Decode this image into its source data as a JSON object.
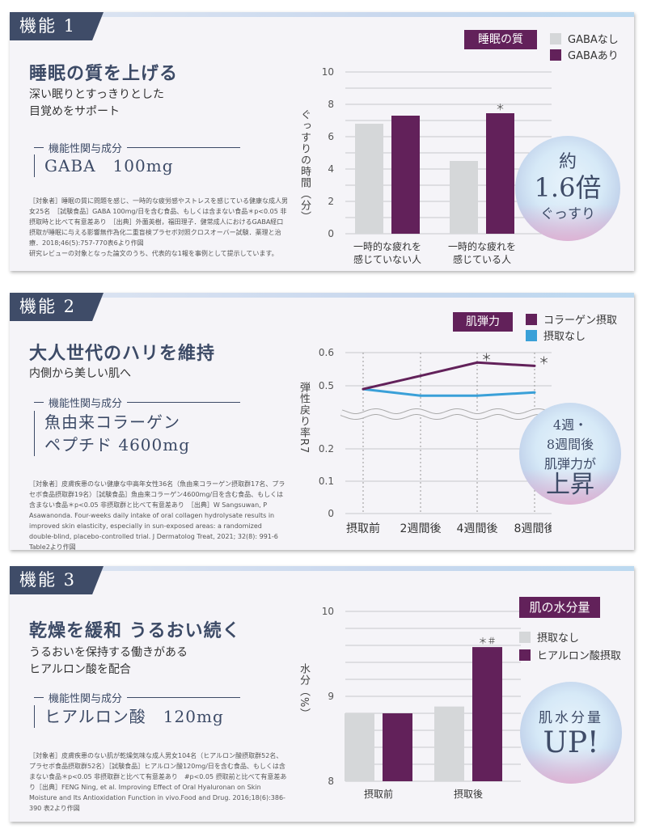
{
  "sections": [
    {
      "tab": "機能 1",
      "title": "睡眠の質を上げる",
      "subtitle": [
        "深い眠りとすっきりとした",
        "目覚めをサポート"
      ],
      "ingredient_label": "機能性関与成分",
      "ingredient": [
        "GABA　100mg"
      ],
      "note": "［対象者］睡眠の質に問題を感じ、一時的な疲労感やストレスを感じている健康な成人男女25名　［試験食品］GABA 100mg/日を含む食品、もしくは含まない食品＊p<0.05 非摂取時と比べて有意差あり　［出典］外薗英樹，福田理子．健常成人におけるGABA経口摂取が睡眠に与える影響無作為化二重盲検プラセボ対照クロスオーバー試験．薬理と治療．2018;46(5):757-770表6より作図\n研究レビューの対象となった論文のうち、代表的な1報を事例として提示しています。",
      "legend_title": "睡眠の質",
      "badge": [
        "約",
        "1.6倍",
        "ぐっすり"
      ]
    },
    {
      "tab": "機能 2",
      "title": "大人世代のハリを維持",
      "subtitle": [
        "内側から美しい肌へ"
      ],
      "ingredient_label": "機能性関与成分",
      "ingredient": [
        "魚由来コラーゲン",
        "ペプチド 4600mg"
      ],
      "note": "［対象者］皮膚疾患のない健康な中高年女性36名（魚由来コラーゲン摂取群17名、プラセボ食品摂取群19名）［試験食品］魚由来コラーゲン4600mg/日を含む食品、もしくは含まない食品＊p<0.05 非摂取群と比べて有意差あり　［出典］W Sangsuwan, P Asawanonda. Four-weeks daily intake of oral collagen hydrolysate results in improved skin elasticity, especially in sun-exposed areas: a randomized double-blind, placebo-controlled trial. J Dermatolog Treat, 2021; 32(8): 991-6 Table2より作図",
      "legend_title": "肌弾力",
      "badge": [
        "4週・",
        "8週間後",
        "肌弾力が",
        "上昇"
      ]
    },
    {
      "tab": "機能 3",
      "title": "乾燥を緩和 うるおい続く",
      "subtitle": [
        "うるおいを保持する働きがある",
        "ヒアルロン酸を配合"
      ],
      "ingredient_label": "機能性関与成分",
      "ingredient": [
        "ヒアルロン酸　120mg"
      ],
      "note": "［対象者］皮膚疾患のない肌が乾燥気味な成人男女104名（ヒアルロン酸摂取群52名、プラセボ食品摂取群52名）［試験食品］ヒアルロン酸120mg/日を含む食品、もしくは含まない食品＊p<0.05 非摂取群と比べて有意差あり　#p<0.05 摂取前と比べて有意差あり［出典］FENG Ning, et al. Improving Effect of Oral Hyaluronan on Skin Moisture and Its Antioxidation Function in vivo.Food and Drug. 2016;18(6):386-390 表2より作図",
      "legend_title": "肌の水分量",
      "badge": [
        "肌水分量",
        "UP!"
      ]
    }
  ],
  "chart_data": [
    {
      "type": "bar",
      "ylabel": "ぐっすりの時間（分）",
      "ylim": [
        0,
        10
      ],
      "yticks": [
        0,
        2,
        4,
        6,
        8,
        10
      ],
      "categories": [
        "一時的な疲れを\n感じていない人",
        "一時的な疲れを\n感じている人"
      ],
      "series": [
        {
          "name": "GABAなし",
          "color": "#d5d7d9",
          "values": [
            6.8,
            4.5
          ]
        },
        {
          "name": "GABAあり",
          "color": "#62215a",
          "values": [
            7.3,
            7.45
          ]
        }
      ],
      "annotations": [
        "",
        "＊"
      ],
      "grid": true,
      "legend": "top-right"
    },
    {
      "type": "line",
      "ylabel": "弾性戻り率R7",
      "ylim": [
        0,
        0.6
      ],
      "yticks": [
        0,
        0.1,
        0.2,
        0.5,
        0.6
      ],
      "axis_break": [
        0.2,
        0.5
      ],
      "categories": [
        "摂取前",
        "2週間後",
        "4週間後",
        "8週間後"
      ],
      "series": [
        {
          "name": "コラーゲン摂取",
          "color": "#62215a",
          "values": [
            0.49,
            0.53,
            0.57,
            0.56
          ],
          "annotations": [
            "",
            "",
            "＊",
            "＊"
          ]
        },
        {
          "name": "摂取なし",
          "color": "#3aa0d8",
          "values": [
            0.49,
            0.47,
            0.47,
            0.48
          ]
        }
      ],
      "grid": true,
      "legend": "top-right"
    },
    {
      "type": "bar",
      "ylabel": "水分（%）",
      "ylim": [
        8,
        10
      ],
      "yticks": [
        8,
        9,
        10
      ],
      "categories": [
        "摂取前",
        "摂取後"
      ],
      "series": [
        {
          "name": "摂取なし",
          "color": "#d5d7d9",
          "values": [
            8.8,
            8.88
          ]
        },
        {
          "name": "ヒアルロン酸摂取",
          "color": "#62215a",
          "values": [
            8.8,
            9.58
          ]
        }
      ],
      "annotations": [
        "",
        "＊＃"
      ],
      "grid": true,
      "legend": "top-right"
    }
  ]
}
